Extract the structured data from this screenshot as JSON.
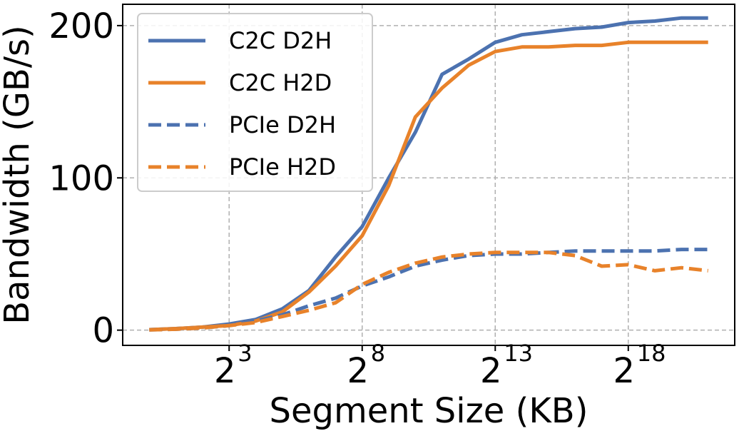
{
  "chart_data": {
    "type": "line",
    "xlabel": "Segment Size (KB)",
    "ylabel": "Bandwidth (GB/s)",
    "x_scale": "log2",
    "x": [
      1,
      2,
      4,
      8,
      16,
      32,
      64,
      128,
      256,
      512,
      1024,
      2048,
      4096,
      8192,
      16384,
      32768,
      65536,
      131072,
      262144,
      524288,
      1048576,
      2097152
    ],
    "xlim": [
      0.5,
      4194304
    ],
    "ylim": [
      -10,
      214
    ],
    "xticks": [
      8,
      256,
      8192,
      262144
    ],
    "xtick_labels": [
      {
        "base": "2",
        "exp": "3"
      },
      {
        "base": "2",
        "exp": "8"
      },
      {
        "base": "2",
        "exp": "13"
      },
      {
        "base": "2",
        "exp": "18"
      }
    ],
    "yticks": [
      0,
      100,
      200
    ],
    "ytick_labels": [
      "0",
      "100",
      "200"
    ],
    "grid": true,
    "legend_position": "top-left",
    "series": [
      {
        "name": "C2C D2H",
        "color": "#4c72b0",
        "dash": "solid",
        "values": [
          0.3,
          1,
          2,
          4,
          7,
          14,
          26,
          48,
          68,
          100,
          130,
          168,
          178,
          189,
          194,
          196,
          198,
          199,
          202,
          203,
          205,
          205
        ]
      },
      {
        "name": "C2C H2D",
        "color": "#e8822a",
        "dash": "solid",
        "values": [
          0.3,
          1,
          2,
          3,
          6,
          12,
          25,
          42,
          62,
          95,
          140,
          159,
          174,
          183,
          186,
          186,
          187,
          187,
          189,
          189,
          189,
          189
        ]
      },
      {
        "name": "PCIe D2H",
        "color": "#4c72b0",
        "dash": "dashed",
        "values": [
          0.2,
          0.6,
          1.5,
          3,
          6,
          10,
          16,
          21,
          29,
          35,
          42,
          46,
          49,
          50,
          50,
          51,
          52,
          52,
          52,
          52,
          53,
          53
        ]
      },
      {
        "name": "PCIe H2D",
        "color": "#e8822a",
        "dash": "dashed",
        "values": [
          0.2,
          0.6,
          1.5,
          3,
          5,
          9,
          13,
          18,
          30,
          38,
          44,
          48,
          50,
          51,
          51,
          51,
          49,
          42,
          43,
          39,
          41,
          39
        ]
      }
    ]
  }
}
